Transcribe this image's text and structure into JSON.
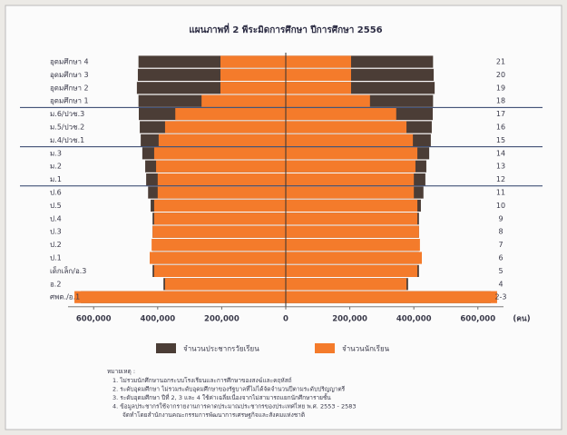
{
  "chart_data": {
    "type": "pyramid",
    "title": "แผนภาพที่ 2  พีระมิดการศึกษา ปีการศึกษา 2556",
    "categories": [
      "อุดมศึกษา 4",
      "อุดมศึกษา 3",
      "อุดมศึกษา 2",
      "อุดมศึกษา 1",
      "ม.6/ปวช.3",
      "ม.5/ปวช.2",
      "ม.4/ปวช.1",
      "ม.3",
      "ม.2",
      "ม.1",
      "ป.6",
      "ป.5",
      "ป.4",
      "ป.3",
      "ป.2",
      "ป.1",
      "เด็กเล็ก/อ.3",
      "อ.2",
      "ศพด./อ.1"
    ],
    "ages": [
      "21",
      "20",
      "19",
      "18",
      "17",
      "16",
      "15",
      "14",
      "13",
      "12",
      "11",
      "10",
      "9",
      "8",
      "7",
      "6",
      "5",
      "4",
      "2-3"
    ],
    "series": [
      {
        "name": "จำนวนประชากรวัยเรียน",
        "color": "#4b3d36",
        "values": [
          460000,
          462000,
          465000,
          460000,
          459000,
          456000,
          453000,
          448000,
          439000,
          436000,
          430000,
          422000,
          416000,
          416000,
          416000,
          416000,
          416000,
          382000,
          640000
        ]
      },
      {
        "name": "จำนวนนักเรียน",
        "color": "#f47b2b",
        "values": [
          204000,
          204000,
          204000,
          263000,
          345000,
          377000,
          397000,
          411000,
          405000,
          400000,
          400000,
          411000,
          411000,
          416000,
          419000,
          425000,
          411000,
          377000,
          660000
        ]
      }
    ],
    "xlim": [
      -680000,
      680000
    ],
    "xticks": [
      {
        "value": -600000,
        "label": "600,000"
      },
      {
        "value": -400000,
        "label": "400,000"
      },
      {
        "value": -200000,
        "label": "200,000"
      },
      0,
      {
        "value": 200000,
        "label": "200,000"
      },
      {
        "value": 400000,
        "label": "400,000"
      },
      {
        "value": 600000,
        "label": "600,000"
      }
    ],
    "x_unit": "(คน)",
    "notes": {
      "label": "หมายเหตุ :",
      "items": [
        "1.  ไม่รวมนักศึกษานอกระบบโรงเรียนและการศึกษาของสงฆ์และคฤหัสถ์",
        "2.  ระดับอุดมศึกษา ไม่รวมระดับอุดมศึกษาของรัฐบาลที่ไม่ได้จัดจำนวนปีตามระดับปริญญาตรี",
        "3.  ระดับอุดมศึกษา ปีที่ 2, 3 และ 4 ใช้ค่าเฉลี่ยเนื่องจากไม่สามารถแยกนักศึกษารายชั้น",
        "4.  ข้อมูลประชากรใช้จากรายงานการคาดประมาณประชากรของประเทศไทย พ.ศ. 2553 - 2583",
        "จัดทำโดยสำนักงานคณะกรรมการพัฒนาการเศรษฐกิจและสังคมแห่งชาติ"
      ]
    }
  }
}
